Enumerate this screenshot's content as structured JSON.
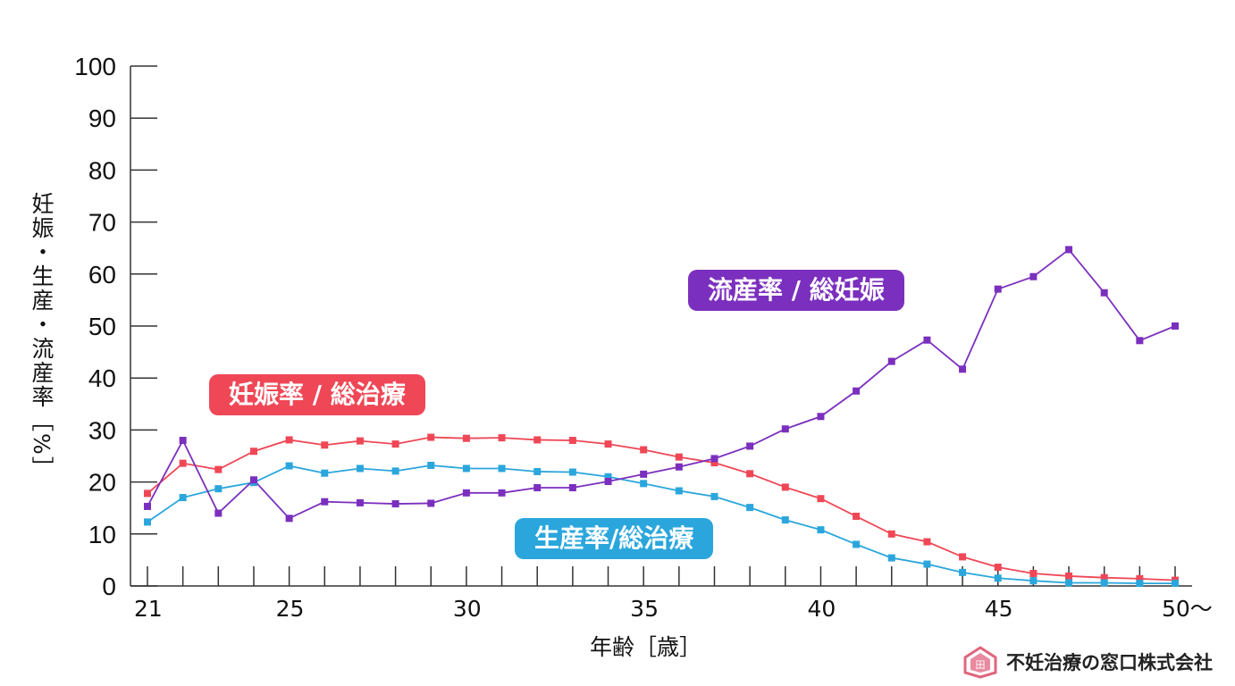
{
  "chart_data": {
    "type": "line",
    "x": [
      21,
      22,
      23,
      24,
      25,
      26,
      27,
      28,
      29,
      30,
      31,
      32,
      33,
      34,
      35,
      36,
      37,
      38,
      39,
      40,
      41,
      42,
      43,
      44,
      45,
      46,
      47,
      48,
      49,
      50
    ],
    "xticks": [
      21,
      25,
      30,
      35,
      40,
      45,
      50
    ],
    "xtick_labels": [
      "21",
      "25",
      "30",
      "35",
      "40",
      "45",
      "50～"
    ],
    "xlim": [
      21,
      50
    ],
    "ylim": [
      0,
      100
    ],
    "yticks": [
      0,
      10,
      20,
      30,
      40,
      50,
      60,
      70,
      80,
      90,
      100
    ],
    "xlabel": "年齢［歳］",
    "ylabel": "妊娠・生産・流産率［%］",
    "grid": false,
    "series": [
      {
        "name": "妊娠率 / 総治療",
        "color": "#ef4756",
        "values": [
          17.8,
          23.6,
          22.4,
          25.9,
          28.1,
          27.1,
          27.9,
          27.3,
          28.6,
          28.4,
          28.5,
          28.1,
          28.0,
          27.3,
          26.2,
          24.8,
          23.7,
          21.6,
          19.0,
          16.8,
          13.4,
          10.0,
          8.5,
          5.6,
          3.6,
          2.4,
          1.9,
          1.6,
          1.4,
          1.1
        ]
      },
      {
        "name": "生産率/総治療",
        "color": "#2aa6dc",
        "values": [
          12.3,
          17.0,
          18.7,
          19.9,
          23.1,
          21.7,
          22.6,
          22.1,
          23.2,
          22.6,
          22.6,
          22.0,
          21.9,
          21.0,
          19.7,
          18.3,
          17.2,
          15.1,
          12.7,
          10.8,
          8.0,
          5.4,
          4.2,
          2.6,
          1.5,
          1.0,
          0.6,
          0.6,
          0.5,
          0.5
        ]
      },
      {
        "name": "流産率 / 総妊娠",
        "color": "#7b2fbe",
        "values": [
          15.3,
          28.0,
          14.0,
          20.4,
          13.0,
          16.2,
          16.0,
          15.8,
          15.9,
          17.9,
          17.9,
          18.9,
          18.9,
          20.1,
          21.5,
          22.9,
          24.5,
          26.9,
          30.2,
          32.6,
          37.5,
          43.2,
          47.3,
          41.7,
          57.1,
          59.5,
          64.7,
          56.4,
          47.2,
          50.0
        ]
      }
    ]
  },
  "brand": {
    "name": "不妊治療の窓口株式会社",
    "logo_mark": "田"
  }
}
